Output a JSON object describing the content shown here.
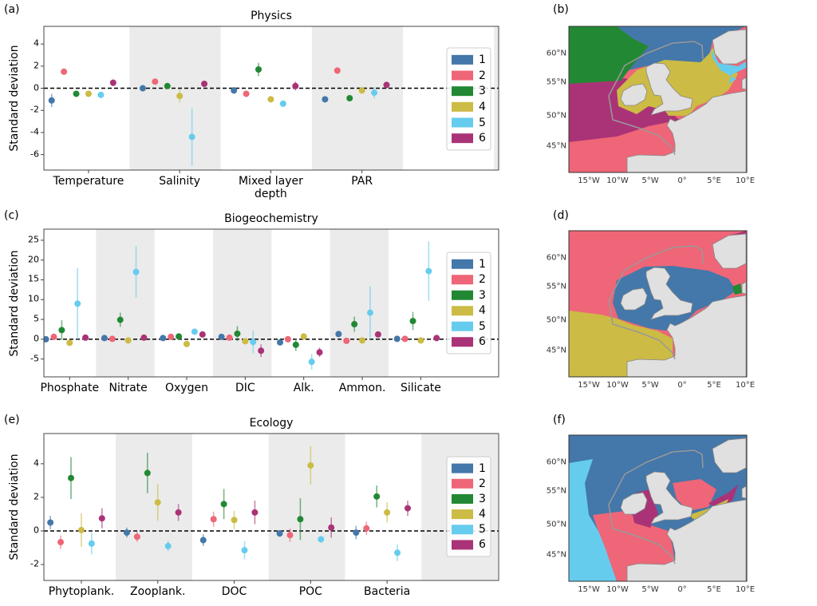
{
  "colors": {
    "1": "#4477AA",
    "2": "#EE6677",
    "3": "#228833",
    "4": "#CCBB44",
    "5": "#66CCEE",
    "6": "#AA3377",
    "land": "#E0E0E0",
    "shading": "#EBEBEB",
    "contour": "#999999"
  },
  "panel_labels": {
    "a": "(a)",
    "b": "(b)",
    "c": "(c)",
    "d": "(d)",
    "e": "(e)",
    "f": "(f)"
  },
  "maps": {
    "lon_ticks": [
      "15°W",
      "10°W",
      "5°W",
      "0°",
      "5°E",
      "10°E"
    ],
    "lat_ticks": [
      "60°N",
      "55°N",
      "50°N",
      "45°N"
    ]
  },
  "chart_data": [
    {
      "type": "scatter",
      "title": "Physics",
      "ylabel": "Standard deviation",
      "categories": [
        "Temperature",
        "Salinity",
        "Mixed layer\ndepth",
        "PAR"
      ],
      "ylim": [
        -7.4,
        5.6
      ],
      "yticks": [
        -6,
        -4,
        -2,
        0,
        2,
        4
      ],
      "reference_line": 0,
      "legend": {
        "placement": "right",
        "entries": [
          "1",
          "2",
          "3",
          "4",
          "5",
          "6"
        ]
      },
      "series": [
        {
          "name": "1",
          "values": [
            -1.1,
            0.0,
            -0.2,
            -1.0
          ],
          "errors": [
            0.6,
            0.15,
            0.3,
            0.15
          ]
        },
        {
          "name": "2",
          "values": [
            1.5,
            0.6,
            -0.5,
            1.6
          ],
          "errors": [
            0.25,
            0.15,
            0.15,
            0.3
          ]
        },
        {
          "name": "3",
          "values": [
            -0.5,
            0.2,
            1.7,
            -0.9
          ],
          "errors": [
            0.15,
            0.15,
            0.6,
            0.15
          ]
        },
        {
          "name": "4",
          "values": [
            -0.5,
            -0.7,
            -1.0,
            -0.2
          ],
          "errors": [
            0.15,
            0.6,
            0.15,
            0.3
          ]
        },
        {
          "name": "5",
          "values": [
            -0.6,
            -4.4,
            -1.4,
            -0.4
          ],
          "errors": [
            0.25,
            2.6,
            0.15,
            0.5
          ]
        },
        {
          "name": "6",
          "values": [
            0.5,
            0.4,
            0.2,
            0.3
          ],
          "errors": [
            0.3,
            0.15,
            0.4,
            0.3
          ]
        }
      ]
    },
    {
      "type": "scatter",
      "title": "Biogeochemistry",
      "ylabel": "Standard deviation",
      "categories": [
        "Phosphate",
        "Nitrate",
        "Oxygen",
        "DIC",
        "Alk.",
        "Ammon.",
        "Silicate"
      ],
      "ylim": [
        -9.5,
        27.8
      ],
      "yticks": [
        -5,
        0,
        5,
        10,
        15,
        20,
        25
      ],
      "reference_line": 0,
      "legend": {
        "placement": "right",
        "entries": [
          "1",
          "2",
          "3",
          "4",
          "5",
          "6"
        ]
      },
      "series": [
        {
          "name": "1",
          "values": [
            0.0,
            0.3,
            0.3,
            0.6,
            -0.8,
            1.3,
            0.1
          ],
          "errors": [
            0.3,
            0.3,
            0.3,
            0.6,
            0.5,
            0.5,
            0.3
          ]
        },
        {
          "name": "2",
          "values": [
            0.6,
            0.1,
            0.6,
            0.4,
            0.0,
            -0.4,
            0.1
          ],
          "errors": [
            0.3,
            0.3,
            0.3,
            0.3,
            0.3,
            0.3,
            0.3
          ]
        },
        {
          "name": "3",
          "values": [
            2.3,
            4.9,
            0.7,
            1.4,
            -1.4,
            3.8,
            4.6
          ],
          "errors": [
            2.5,
            1.8,
            0.5,
            1.9,
            1.5,
            1.9,
            2.3
          ]
        },
        {
          "name": "4",
          "values": [
            -0.9,
            -0.3,
            -1.2,
            -0.5,
            0.7,
            -0.3,
            -0.3
          ],
          "errors": [
            0.3,
            0.3,
            0.3,
            0.3,
            0.3,
            0.3,
            0.3
          ]
        },
        {
          "name": "5",
          "values": [
            9.0,
            17.0,
            1.9,
            -0.7,
            -5.7,
            6.7,
            17.2
          ],
          "errors": [
            9.0,
            6.5,
            0.5,
            2.9,
            2.0,
            6.7,
            7.5
          ]
        },
        {
          "name": "6",
          "values": [
            0.4,
            0.4,
            1.2,
            -2.9,
            -3.3,
            1.2,
            0.3
          ],
          "errors": [
            0.3,
            0.3,
            0.4,
            1.6,
            1.2,
            0.5,
            0.3
          ]
        }
      ]
    },
    {
      "type": "scatter",
      "title": "Ecology",
      "ylabel": "Standard deviation",
      "categories": [
        "Phytoplank.",
        "Zooplank.",
        "DOC",
        "POC",
        "Bacteria"
      ],
      "ylim": [
        -2.95,
        5.8
      ],
      "yticks": [
        -2,
        0,
        2,
        4
      ],
      "reference_line": 0,
      "legend": {
        "placement": "right",
        "entries": [
          "1",
          "2",
          "3",
          "4",
          "5",
          "6"
        ]
      },
      "series": [
        {
          "name": "1",
          "values": [
            0.5,
            -0.1,
            -0.55,
            -0.15,
            -0.1
          ],
          "errors": [
            0.4,
            0.3,
            0.35,
            0.2,
            0.4
          ]
        },
        {
          "name": "2",
          "values": [
            -0.67,
            -0.35,
            0.7,
            -0.25,
            0.15
          ],
          "errors": [
            0.4,
            0.3,
            0.45,
            0.4,
            0.4
          ]
        },
        {
          "name": "3",
          "values": [
            3.15,
            3.45,
            1.6,
            0.7,
            2.05
          ],
          "errors": [
            1.25,
            1.2,
            0.9,
            1.25,
            0.65
          ]
        },
        {
          "name": "4",
          "values": [
            0.05,
            1.7,
            0.65,
            3.9,
            1.1
          ],
          "errors": [
            1.0,
            1.1,
            0.55,
            1.15,
            0.6
          ]
        },
        {
          "name": "5",
          "values": [
            -0.75,
            -0.9,
            -1.15,
            -0.5,
            -1.3
          ],
          "errors": [
            0.65,
            0.3,
            0.55,
            0.2,
            0.5
          ]
        },
        {
          "name": "6",
          "values": [
            0.75,
            1.1,
            1.1,
            0.2,
            1.35
          ],
          "errors": [
            0.6,
            0.5,
            0.7,
            0.6,
            0.45
          ]
        }
      ]
    }
  ]
}
